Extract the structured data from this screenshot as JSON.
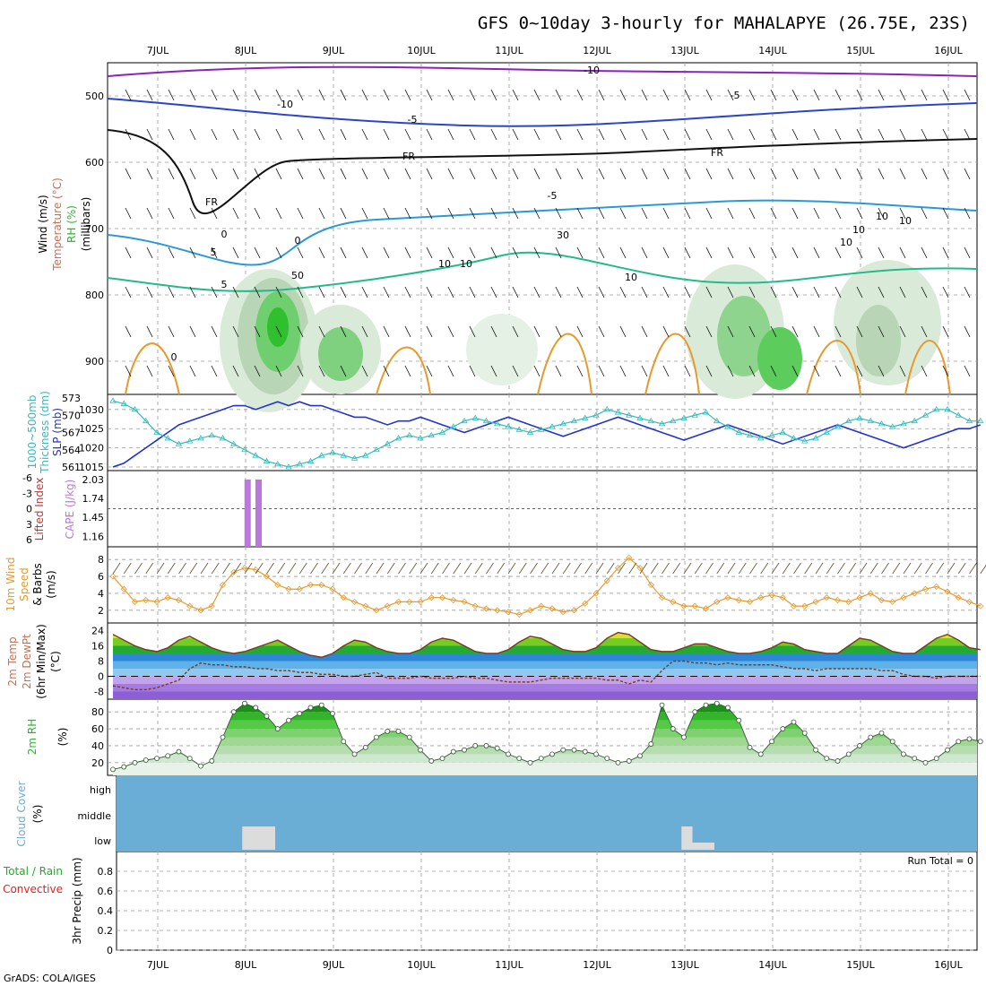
{
  "title": "GFS 0~10day 3-hourly for MAHALAPYE (26.75E, 23S)",
  "credit": "GrADS: COLA/IGES",
  "run_total": "Run Total = 0",
  "colors": {
    "temp": "#d26b4b",
    "rh": "#22bb22",
    "slp": "#2233cc",
    "thick": "#33bbbb",
    "li": "#cc3333",
    "cape": "#bb77dd",
    "wind": "#e69a2e",
    "cloud_bg": "#6aaed6",
    "cloud_low": "#dcdcdc",
    "precip_total": "#22aa22",
    "precip_conv": "#dd2222"
  },
  "chart_data": [
    {
      "type": "heatmap",
      "name": "upper-air",
      "days": [
        "7JUL",
        "8JUL",
        "9JUL",
        "10JUL",
        "11JUL",
        "12JUL",
        "13JUL",
        "14JUL",
        "15JUL",
        "16JUL"
      ],
      "ylabels": [
        "Wind (m/s)",
        "Temperature (°C)",
        "RH (%)",
        "(millibars)"
      ],
      "yticks": [
        "500",
        "600",
        "700",
        "800",
        "900"
      ],
      "ylim": [
        950,
        450
      ],
      "contour_labels": [
        "-10",
        "-10",
        "-5",
        "-5",
        "FR",
        "FR",
        "FR",
        "-5",
        "5",
        "5",
        "10",
        "10",
        "10",
        "0",
        "0",
        "0",
        "30",
        "10",
        "10",
        "10",
        "10",
        "50"
      ]
    },
    {
      "type": "line",
      "name": "thickness-slp",
      "ylabels": [
        "1000~500mb",
        "Thickness (dm)",
        "SLP (mb)"
      ],
      "left_ticks": [
        "573",
        "570",
        "567",
        "564",
        "561"
      ],
      "right_ticks": [
        "1030",
        "1025",
        "1020",
        "1015"
      ],
      "thickness_ylim": [
        561,
        573
      ],
      "slp_ylim": [
        1015,
        1033
      ],
      "x": [
        0,
        0.125,
        0.25,
        0.375,
        0.5,
        0.625,
        0.75,
        0.875,
        1,
        1.125,
        1.25,
        1.375,
        1.5,
        1.625,
        1.75,
        1.875,
        2,
        2.125,
        2.25,
        2.375,
        2.5,
        2.625,
        2.75,
        2.875,
        3,
        3.125,
        3.25,
        3.375,
        3.5,
        3.625,
        3.75,
        3.875,
        4,
        4.125,
        4.25,
        4.375,
        4.5,
        4.625,
        4.75,
        4.875,
        5,
        5.125,
        5.25,
        5.375,
        5.5,
        5.625,
        5.75,
        5.875,
        6,
        6.125,
        6.25,
        6.375,
        6.5,
        6.625,
        6.75,
        6.875,
        7,
        7.125,
        7.25,
        7.375,
        7.5,
        7.625,
        7.75,
        7.875,
        8,
        8.125,
        8.25,
        8.375,
        8.5,
        8.625,
        8.75,
        8.875,
        9,
        9.125,
        9.25,
        9.375,
        9.5,
        9.625,
        9.75,
        9.875
      ],
      "series": [
        {
          "name": "SLP",
          "values": [
            1015,
            1016,
            1018,
            1020,
            1022,
            1024,
            1026,
            1027,
            1028,
            1029,
            1030,
            1031,
            1031,
            1030,
            1031,
            1032,
            1031,
            1032,
            1031,
            1031,
            1030,
            1029,
            1028,
            1028,
            1027,
            1026,
            1027,
            1027,
            1028,
            1027,
            1026,
            1025,
            1024,
            1025,
            1026,
            1027,
            1028,
            1027,
            1026,
            1025,
            1024,
            1023,
            1024,
            1025,
            1026,
            1027,
            1028,
            1027,
            1026,
            1025,
            1024,
            1023,
            1022,
            1023,
            1024,
            1025,
            1026,
            1025,
            1024,
            1023,
            1022,
            1021,
            1022,
            1023,
            1024,
            1025,
            1026,
            1025,
            1024,
            1023,
            1022,
            1021,
            1020,
            1021,
            1022,
            1023,
            1024,
            1025,
            1025,
            1026
          ]
        },
        {
          "name": "Thickness",
          "values": [
            572.5,
            572,
            571,
            569,
            567,
            566,
            565,
            565.5,
            566,
            566.5,
            566,
            565,
            564,
            563,
            562,
            561.5,
            561,
            561.5,
            562,
            563,
            563.5,
            563,
            562.5,
            563,
            564,
            565,
            566,
            566.5,
            566,
            566.5,
            567,
            568,
            569,
            569.5,
            569,
            568.5,
            568,
            567.5,
            567,
            567.5,
            568,
            568.5,
            569,
            569.5,
            570,
            571,
            570.5,
            570,
            569.5,
            569,
            568.5,
            569,
            569.5,
            570,
            570.5,
            569,
            568,
            567,
            566.5,
            566,
            566.5,
            567,
            566,
            565.5,
            566,
            567,
            568,
            569,
            569.5,
            569,
            568.5,
            568,
            568.5,
            569,
            570,
            571,
            571,
            570,
            569,
            569
          ]
        }
      ]
    },
    {
      "type": "bar",
      "name": "lifted-index-cape",
      "ylabels": [
        "Lifted Index",
        "CAPE (J/kg)"
      ],
      "left_ticks": [
        "-6",
        "-3",
        "0",
        "3",
        "6"
      ],
      "right_ticks": [
        "2.03",
        "1.74",
        "1.45",
        "1.16"
      ],
      "cape_ylim": [
        1.0,
        2.03
      ],
      "x": [
        1.375,
        1.5
      ],
      "values": [
        2.03,
        2.03
      ]
    },
    {
      "type": "line",
      "name": "wind-10m",
      "ylabels": [
        "10m Wind",
        "Speed",
        "& Barbs",
        "(m/s)"
      ],
      "yticks": [
        "2",
        "4",
        "6",
        "8"
      ],
      "ylim": [
        0.5,
        9.5
      ],
      "x": [
        0,
        0.125,
        0.25,
        0.375,
        0.5,
        0.625,
        0.75,
        0.875,
        1,
        1.125,
        1.25,
        1.375,
        1.5,
        1.625,
        1.75,
        1.875,
        2,
        2.125,
        2.25,
        2.375,
        2.5,
        2.625,
        2.75,
        2.875,
        3,
        3.125,
        3.25,
        3.375,
        3.5,
        3.625,
        3.75,
        3.875,
        4,
        4.125,
        4.25,
        4.375,
        4.5,
        4.625,
        4.75,
        4.875,
        5,
        5.125,
        5.25,
        5.375,
        5.5,
        5.625,
        5.75,
        5.875,
        6,
        6.125,
        6.25,
        6.375,
        6.5,
        6.625,
        6.75,
        6.875,
        7,
        7.125,
        7.25,
        7.375,
        7.5,
        7.625,
        7.75,
        7.875,
        8,
        8.125,
        8.25,
        8.375,
        8.5,
        8.625,
        8.75,
        8.875,
        9,
        9.125,
        9.25,
        9.375,
        9.5,
        9.625,
        9.75,
        9.875
      ],
      "values": [
        6,
        4.5,
        3,
        3.2,
        3,
        3.5,
        3.2,
        2.5,
        2,
        2.5,
        5,
        6.5,
        7,
        6.8,
        6,
        5,
        4.5,
        4.5,
        5,
        5,
        4.5,
        3.5,
        3,
        2.5,
        2,
        2.5,
        3,
        3,
        3,
        3.5,
        3.5,
        3.2,
        3,
        2.5,
        2.2,
        2,
        1.8,
        1.5,
        2,
        2.5,
        2.2,
        1.8,
        2,
        2.8,
        4,
        5.5,
        7,
        8.2,
        7,
        5,
        3.5,
        3,
        2.5,
        2.5,
        2.2,
        3,
        3.5,
        3.2,
        3,
        3.5,
        3.8,
        3.5,
        2.5,
        2.5,
        3,
        3.5,
        3.2,
        3,
        3.5,
        4,
        3.2,
        3,
        3.5,
        4,
        4.5,
        4.8,
        4.2,
        3.5,
        3,
        2.5
      ]
    },
    {
      "type": "area",
      "name": "temp-dewpoint",
      "ylabels": [
        "2m Temp",
        "2m DewPt",
        "(6hr Min/Max)",
        "(°C)"
      ],
      "yticks": [
        "24",
        "16",
        "8",
        "0",
        "-8"
      ],
      "ylim": [
        -12,
        28
      ],
      "x": [
        0,
        0.125,
        0.25,
        0.375,
        0.5,
        0.625,
        0.75,
        0.875,
        1,
        1.125,
        1.25,
        1.375,
        1.5,
        1.625,
        1.75,
        1.875,
        2,
        2.125,
        2.25,
        2.375,
        2.5,
        2.625,
        2.75,
        2.875,
        3,
        3.125,
        3.25,
        3.375,
        3.5,
        3.625,
        3.75,
        3.875,
        4,
        4.125,
        4.25,
        4.375,
        4.5,
        4.625,
        4.75,
        4.875,
        5,
        5.125,
        5.25,
        5.375,
        5.5,
        5.625,
        5.75,
        5.875,
        6,
        6.125,
        6.25,
        6.375,
        6.5,
        6.625,
        6.75,
        6.875,
        7,
        7.125,
        7.25,
        7.375,
        7.5,
        7.625,
        7.75,
        7.875,
        8,
        8.125,
        8.25,
        8.375,
        8.5,
        8.625,
        8.75,
        8.875,
        9,
        9.125,
        9.25,
        9.375,
        9.5,
        9.625,
        9.75,
        9.875
      ],
      "series": [
        {
          "name": "2m Temp",
          "values": [
            22,
            19,
            16,
            14,
            13,
            15,
            19,
            21,
            18,
            15,
            13,
            12,
            13,
            15,
            17,
            19,
            16,
            13,
            11,
            10,
            12,
            16,
            19,
            18,
            15,
            13,
            12,
            12,
            14,
            18,
            20,
            19,
            16,
            13,
            12,
            12,
            14,
            18,
            21,
            20,
            17,
            14,
            13,
            13,
            15,
            20,
            23,
            22,
            18,
            14,
            13,
            13,
            15,
            17,
            17,
            15,
            13,
            12,
            12,
            13,
            15,
            18,
            17,
            14,
            13,
            12,
            12,
            16,
            20,
            19,
            16,
            13,
            12,
            12,
            16,
            20,
            22,
            19,
            15,
            14
          ]
        },
        {
          "name": "2m DewPt",
          "values": [
            -5,
            -6,
            -7,
            -7,
            -6,
            -4,
            -2,
            4,
            7,
            6,
            6,
            5,
            5,
            4,
            4,
            3,
            3,
            2,
            2,
            1,
            1,
            0,
            0,
            1,
            2,
            -1,
            -1,
            -1,
            0,
            -1,
            -1,
            -1,
            0,
            -1,
            -1,
            -2,
            -3,
            -3,
            -3,
            -2,
            -1,
            -1,
            -1,
            -1,
            -1,
            -2,
            -2,
            -4,
            -2,
            -3,
            3,
            8,
            8,
            7,
            7,
            6,
            7,
            6,
            6,
            6,
            6,
            5,
            4,
            4,
            3,
            4,
            4,
            4,
            4,
            4,
            3,
            3,
            1,
            0,
            0,
            -1,
            0,
            0,
            0,
            0
          ]
        }
      ]
    },
    {
      "type": "area",
      "name": "rh-2m",
      "ylabels": [
        "2m RH",
        "(%)"
      ],
      "yticks": [
        "20",
        "40",
        "60",
        "80"
      ],
      "ylim": [
        5,
        95
      ],
      "x": [
        0,
        0.125,
        0.25,
        0.375,
        0.5,
        0.625,
        0.75,
        0.875,
        1,
        1.125,
        1.25,
        1.375,
        1.5,
        1.625,
        1.75,
        1.875,
        2,
        2.125,
        2.25,
        2.375,
        2.5,
        2.625,
        2.75,
        2.875,
        3,
        3.125,
        3.25,
        3.375,
        3.5,
        3.625,
        3.75,
        3.875,
        4,
        4.125,
        4.25,
        4.375,
        4.5,
        4.625,
        4.75,
        4.875,
        5,
        5.125,
        5.25,
        5.375,
        5.5,
        5.625,
        5.75,
        5.875,
        6,
        6.125,
        6.25,
        6.375,
        6.5,
        6.625,
        6.75,
        6.875,
        7,
        7.125,
        7.25,
        7.375,
        7.5,
        7.625,
        7.75,
        7.875,
        8,
        8.125,
        8.25,
        8.375,
        8.5,
        8.625,
        8.75,
        8.875,
        9,
        9.125,
        9.25,
        9.375,
        9.5,
        9.625,
        9.75,
        9.875
      ],
      "values": [
        12,
        15,
        20,
        23,
        25,
        28,
        33,
        25,
        16,
        22,
        50,
        80,
        90,
        85,
        75,
        60,
        70,
        78,
        85,
        88,
        78,
        45,
        30,
        38,
        50,
        57,
        57,
        50,
        35,
        22,
        25,
        33,
        35,
        40,
        40,
        37,
        30,
        25,
        20,
        25,
        30,
        35,
        35,
        33,
        30,
        25,
        20,
        22,
        28,
        42,
        88,
        60,
        50,
        80,
        88,
        90,
        85,
        70,
        38,
        30,
        45,
        60,
        68,
        55,
        35,
        25,
        22,
        30,
        40,
        50,
        55,
        45,
        30,
        25,
        20,
        25,
        35,
        45,
        48,
        45
      ]
    },
    {
      "type": "bar",
      "name": "cloud-cover",
      "ylabels": [
        "Cloud Cover",
        "(%)"
      ],
      "levels": [
        "high",
        "middle",
        "low"
      ],
      "low_blocks": [
        {
          "x0": 1.125,
          "x1": 1.5
        },
        {
          "x0": 6.125,
          "x1": 6.25
        },
        {
          "x0": 6.25,
          "x1": 6.5
        }
      ]
    },
    {
      "type": "bar",
      "name": "precip",
      "ylabels": [
        "Total / Rain",
        "Convective",
        "3hr Precip (mm)"
      ],
      "yticks": [
        "0",
        "0.2",
        "0.4",
        "0.6",
        "0.8"
      ],
      "ylim": [
        0,
        1
      ],
      "values": []
    }
  ]
}
